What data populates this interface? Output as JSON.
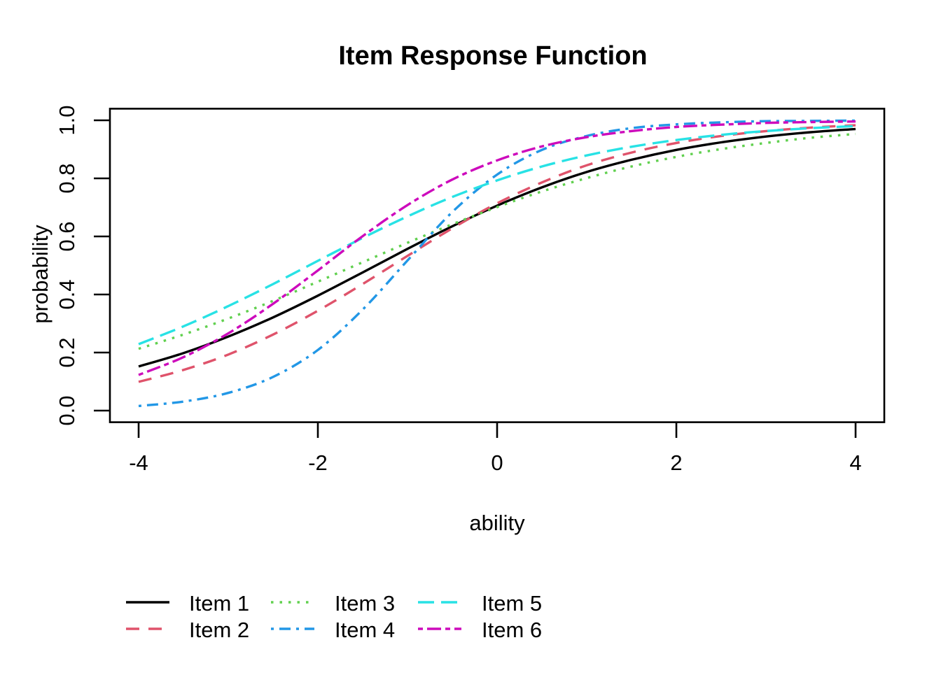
{
  "chart_data": {
    "type": "line",
    "title": "Item Response Function",
    "xlabel": "ability",
    "ylabel": "probability",
    "xlim": [
      -4.32,
      4.32
    ],
    "ylim": [
      -0.04,
      1.04
    ],
    "grid": false,
    "legend_position": "bottom",
    "x_ticks": [
      -4,
      -2,
      0,
      2,
      4
    ],
    "x_tick_labels": [
      "-4",
      "-2",
      "0",
      "2",
      "4"
    ],
    "y_ticks": [
      0.0,
      0.2,
      0.4,
      0.6,
      0.8,
      1.0
    ],
    "y_tick_labels": [
      "0.0",
      "0.2",
      "0.4",
      "0.6",
      "0.8",
      "1.0"
    ],
    "x": [
      -4,
      -3.5,
      -3,
      -2.5,
      -2,
      -1.5,
      -1,
      -0.5,
      0,
      0.5,
      1,
      1.5,
      2,
      2.5,
      3,
      3.5,
      4
    ],
    "series": [
      {
        "name": "Item 1",
        "color": "#000000",
        "linetype": "solid",
        "dash": [],
        "values": [
          0.152,
          0.198,
          0.255,
          0.321,
          0.396,
          0.476,
          0.557,
          0.635,
          0.706,
          0.769,
          0.822,
          0.864,
          0.898,
          0.924,
          0.944,
          0.959,
          0.97
        ]
      },
      {
        "name": "Item 2",
        "color": "#DF536B",
        "linetype": "dashed",
        "dash": [
          19,
          13
        ],
        "values": [
          0.099,
          0.14,
          0.193,
          0.262,
          0.344,
          0.436,
          0.533,
          0.628,
          0.714,
          0.786,
          0.845,
          0.889,
          0.922,
          0.946,
          0.963,
          0.975,
          0.983
        ]
      },
      {
        "name": "Item 3",
        "color": "#61D04F",
        "linetype": "dotted",
        "dash": [
          3.5,
          9
        ],
        "values": [
          0.213,
          0.262,
          0.317,
          0.378,
          0.444,
          0.511,
          0.578,
          0.642,
          0.701,
          0.755,
          0.801,
          0.841,
          0.874,
          0.901,
          0.922,
          0.94,
          0.953
        ]
      },
      {
        "name": "Item 4",
        "color": "#2297E6",
        "linetype": "dotdash",
        "dash": [
          4,
          8,
          16,
          8
        ],
        "values": [
          0.016,
          0.031,
          0.061,
          0.116,
          0.209,
          0.348,
          0.517,
          0.684,
          0.813,
          0.898,
          0.946,
          0.973,
          0.986,
          0.993,
          0.997,
          0.998,
          0.999
        ]
      },
      {
        "name": "Item 5",
        "color": "#28E2E5",
        "linetype": "longdash",
        "dash": [
          23,
          10
        ],
        "values": [
          0.229,
          0.29,
          0.36,
          0.436,
          0.516,
          0.595,
          0.669,
          0.736,
          0.793,
          0.841,
          0.879,
          0.909,
          0.932,
          0.95,
          0.963,
          0.973,
          0.98
        ]
      },
      {
        "name": "Item 6",
        "color": "#CD0BBC",
        "linetype": "twodash",
        "dash": [
          7,
          6,
          20,
          6
        ],
        "values": [
          0.123,
          0.184,
          0.266,
          0.368,
          0.483,
          0.601,
          0.708,
          0.796,
          0.862,
          0.91,
          0.942,
          0.963,
          0.977,
          0.985,
          0.991,
          0.994,
          0.996
        ]
      }
    ],
    "legend": {
      "columns": [
        [
          0,
          1
        ],
        [
          2,
          3
        ],
        [
          4,
          5
        ]
      ]
    },
    "colors": {
      "background": "#ffffff",
      "foreground": "#000000"
    }
  }
}
